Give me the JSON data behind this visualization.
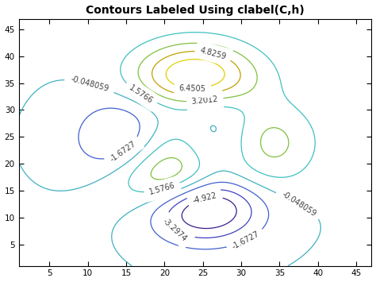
{
  "title": "Contours Labeled Using clabel(C,h)",
  "xlim": [
    1,
    47
  ],
  "ylim": [
    1,
    47
  ],
  "xticks": [
    5,
    10,
    15,
    20,
    25,
    30,
    35,
    40,
    45
  ],
  "yticks": [
    5,
    10,
    15,
    20,
    25,
    30,
    35,
    40,
    45
  ],
  "contour_levels": [
    -4.9222,
    -3.2974,
    -1.6727,
    -0.048059,
    1.5766,
    3.2012,
    4.8259,
    6.4505
  ],
  "label_fontsize": 7,
  "title_fontsize": 10,
  "figsize": [
    4.74,
    3.55
  ],
  "dpi": 100,
  "bg_color": "#ffffff"
}
